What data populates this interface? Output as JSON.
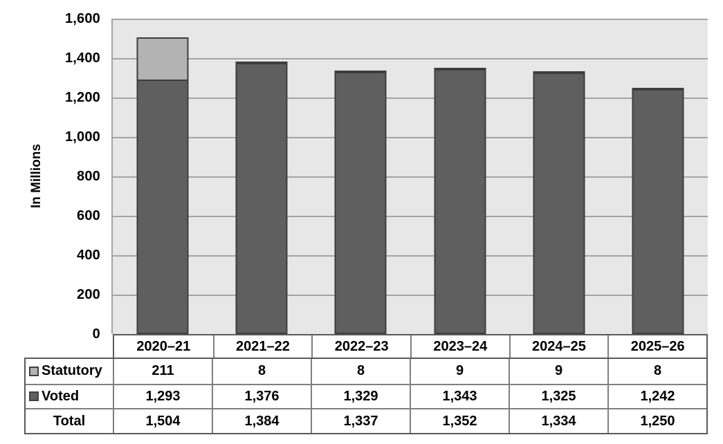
{
  "chart_data": {
    "type": "bar",
    "stacked": true,
    "title": "",
    "categories": [
      "2020–21",
      "2021–22",
      "2022–23",
      "2023–24",
      "2024–25",
      "2025–26"
    ],
    "series": [
      {
        "name": "Voted",
        "color": "#5f5f5f",
        "values": [
          1293,
          1376,
          1329,
          1343,
          1325,
          1242
        ]
      },
      {
        "name": "Statutory",
        "color": "#b3b3b3",
        "values": [
          211,
          8,
          8,
          9,
          9,
          8
        ]
      }
    ],
    "totals": [
      1504,
      1384,
      1337,
      1352,
      1334,
      1250
    ],
    "xlabel": "",
    "ylabel": "In Millions",
    "ylim": [
      0,
      1600
    ],
    "ytick_interval": 200,
    "ytick_labels": [
      "1,600",
      "1,400",
      "1,200",
      "1,000",
      "800",
      "600",
      "400",
      "200",
      "0"
    ],
    "grid": true,
    "legend_position": "table-rows-left"
  },
  "table": {
    "columns": [
      "2020–21",
      "2021–22",
      "2022–23",
      "2023–24",
      "2024–25",
      "2025–26"
    ],
    "rows": [
      {
        "label": "Statutory",
        "series": "Statutory",
        "values": [
          "211",
          "8",
          "8",
          "9",
          "9",
          "8"
        ]
      },
      {
        "label": "Voted",
        "series": "Voted",
        "values": [
          "1,293",
          "1,376",
          "1,329",
          "1,343",
          "1,325",
          "1,242"
        ]
      },
      {
        "label": "Total",
        "series": null,
        "values": [
          "1,504",
          "1,384",
          "1,337",
          "1,352",
          "1,334",
          "1,250"
        ]
      }
    ]
  },
  "colors": {
    "voted": "#5f5f5f",
    "statutory": "#b3b3b3",
    "bar_border": "#3d3d3d",
    "plot_background": "#e7e7e7",
    "gridline": "#a3a3a3",
    "table_inner_border": "#7f7f7f",
    "table_outer_border": "#595959"
  }
}
